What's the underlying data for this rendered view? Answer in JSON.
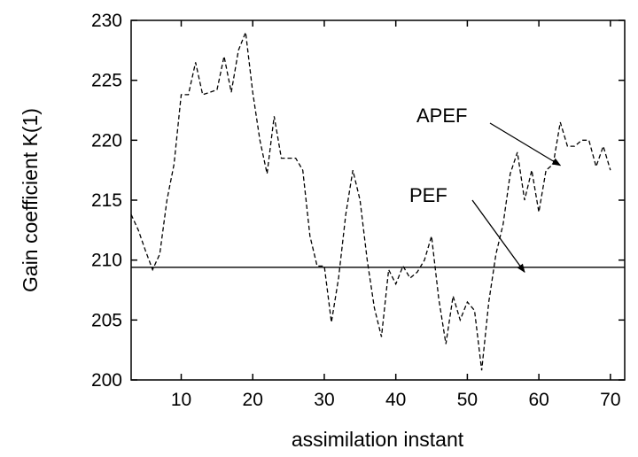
{
  "chart_data": {
    "type": "line",
    "title": "",
    "xlabel": "assimilation instant",
    "ylabel": "Gain coefficient K(1)",
    "xlim": [
      3,
      72
    ],
    "ylim": [
      200,
      230
    ],
    "xticks": [
      10,
      20,
      30,
      40,
      50,
      60,
      70
    ],
    "yticks": [
      200,
      205,
      210,
      215,
      220,
      225,
      230
    ],
    "grid": false,
    "series": [
      {
        "name": "APEF",
        "style": "dashed",
        "x": [
          3,
          4,
          5,
          6,
          7,
          8,
          9,
          10,
          11,
          12,
          13,
          14,
          15,
          16,
          17,
          18,
          19,
          20,
          21,
          22,
          23,
          24,
          25,
          26,
          27,
          28,
          29,
          30,
          31,
          32,
          33,
          34,
          35,
          36,
          37,
          38,
          39,
          40,
          41,
          42,
          43,
          44,
          45,
          46,
          47,
          48,
          49,
          50,
          51,
          52,
          53,
          54,
          55,
          56,
          57,
          58,
          59,
          60,
          61,
          62,
          63,
          64,
          65,
          66,
          67,
          68,
          69,
          70,
          71
        ],
        "y": [
          213.8,
          212.5,
          210.8,
          209.2,
          210.5,
          215.0,
          218.0,
          223.8,
          223.8,
          226.5,
          223.8,
          224.0,
          224.2,
          227.0,
          224.0,
          227.5,
          229.0,
          224.0,
          220.0,
          217.2,
          222.0,
          218.5,
          218.5,
          218.5,
          217.5,
          212.0,
          209.5,
          209.5,
          204.8,
          208.5,
          213.8,
          217.5,
          215.0,
          210.0,
          206.0,
          203.6,
          209.2,
          208.0,
          209.5,
          208.5,
          209.0,
          210.0,
          212.0,
          206.8,
          203.0,
          207.0,
          205.0,
          206.5,
          205.8,
          200.8,
          206.5,
          210.5,
          213.0,
          217.2,
          219.0,
          215.0,
          217.5,
          214.0,
          217.5,
          218.0,
          221.5,
          219.5,
          219.5,
          220.0,
          220.0,
          217.8,
          219.5,
          217.5,
          null
        ]
      },
      {
        "name": "PEF",
        "style": "solid",
        "x": [
          3,
          72
        ],
        "y": [
          209.4,
          209.4
        ]
      }
    ],
    "annotations": [
      {
        "text": "APEF",
        "arrow_to": [
          63,
          217.9
        ]
      },
      {
        "text": "PEF",
        "arrow_to": [
          58,
          209.0
        ]
      }
    ],
    "colors": {
      "line": "#000000",
      "frame": "#000000"
    }
  }
}
